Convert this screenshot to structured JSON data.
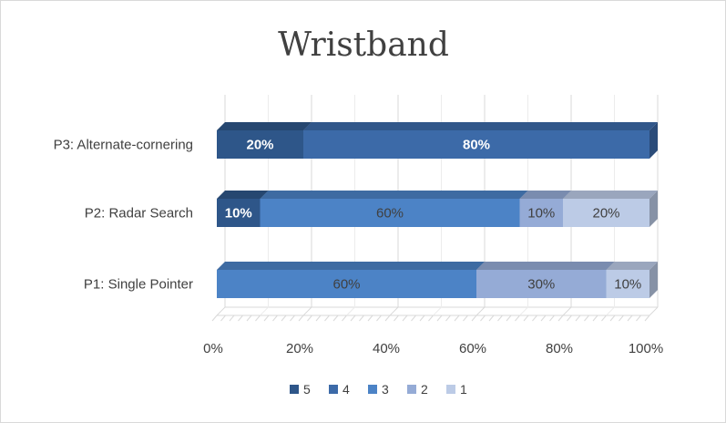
{
  "chart_data": {
    "type": "bar",
    "orientation": "horizontal",
    "stacked": "percent",
    "three_d": true,
    "title": "Wristband",
    "xlabel": "",
    "ylabel": "",
    "xlim": [
      0,
      100
    ],
    "x_ticks": [
      "0%",
      "20%",
      "40%",
      "60%",
      "80%",
      "100%"
    ],
    "categories": [
      "P1: Single Pointer",
      "P2: Radar Search",
      "P3: Alternate-cornering"
    ],
    "series": [
      {
        "name": "5",
        "color": "#2e5689",
        "values": [
          0,
          10,
          20
        ],
        "labels": [
          "",
          "10%",
          "20%"
        ],
        "label_bold": true,
        "label_color": "#ffffff"
      },
      {
        "name": "4",
        "color": "#3c6aa8",
        "values": [
          0,
          0,
          80
        ],
        "labels": [
          "",
          "",
          "80%"
        ],
        "label_bold": true,
        "label_color": "#ffffff"
      },
      {
        "name": "3",
        "color": "#4c83c6",
        "values": [
          60,
          60,
          0
        ],
        "labels": [
          "60%",
          "60%",
          ""
        ],
        "label_bold": false,
        "label_color": "#404040"
      },
      {
        "name": "2",
        "color": "#95abd6",
        "values": [
          30,
          10,
          0
        ],
        "labels": [
          "30%",
          "10%",
          ""
        ],
        "label_bold": false,
        "label_color": "#404040"
      },
      {
        "name": "1",
        "color": "#bccbe6",
        "values": [
          10,
          20,
          0
        ],
        "labels": [
          "10%",
          "20%",
          ""
        ],
        "label_bold": false,
        "label_color": "#404040"
      }
    ],
    "grid": true,
    "legend_position": "bottom"
  }
}
